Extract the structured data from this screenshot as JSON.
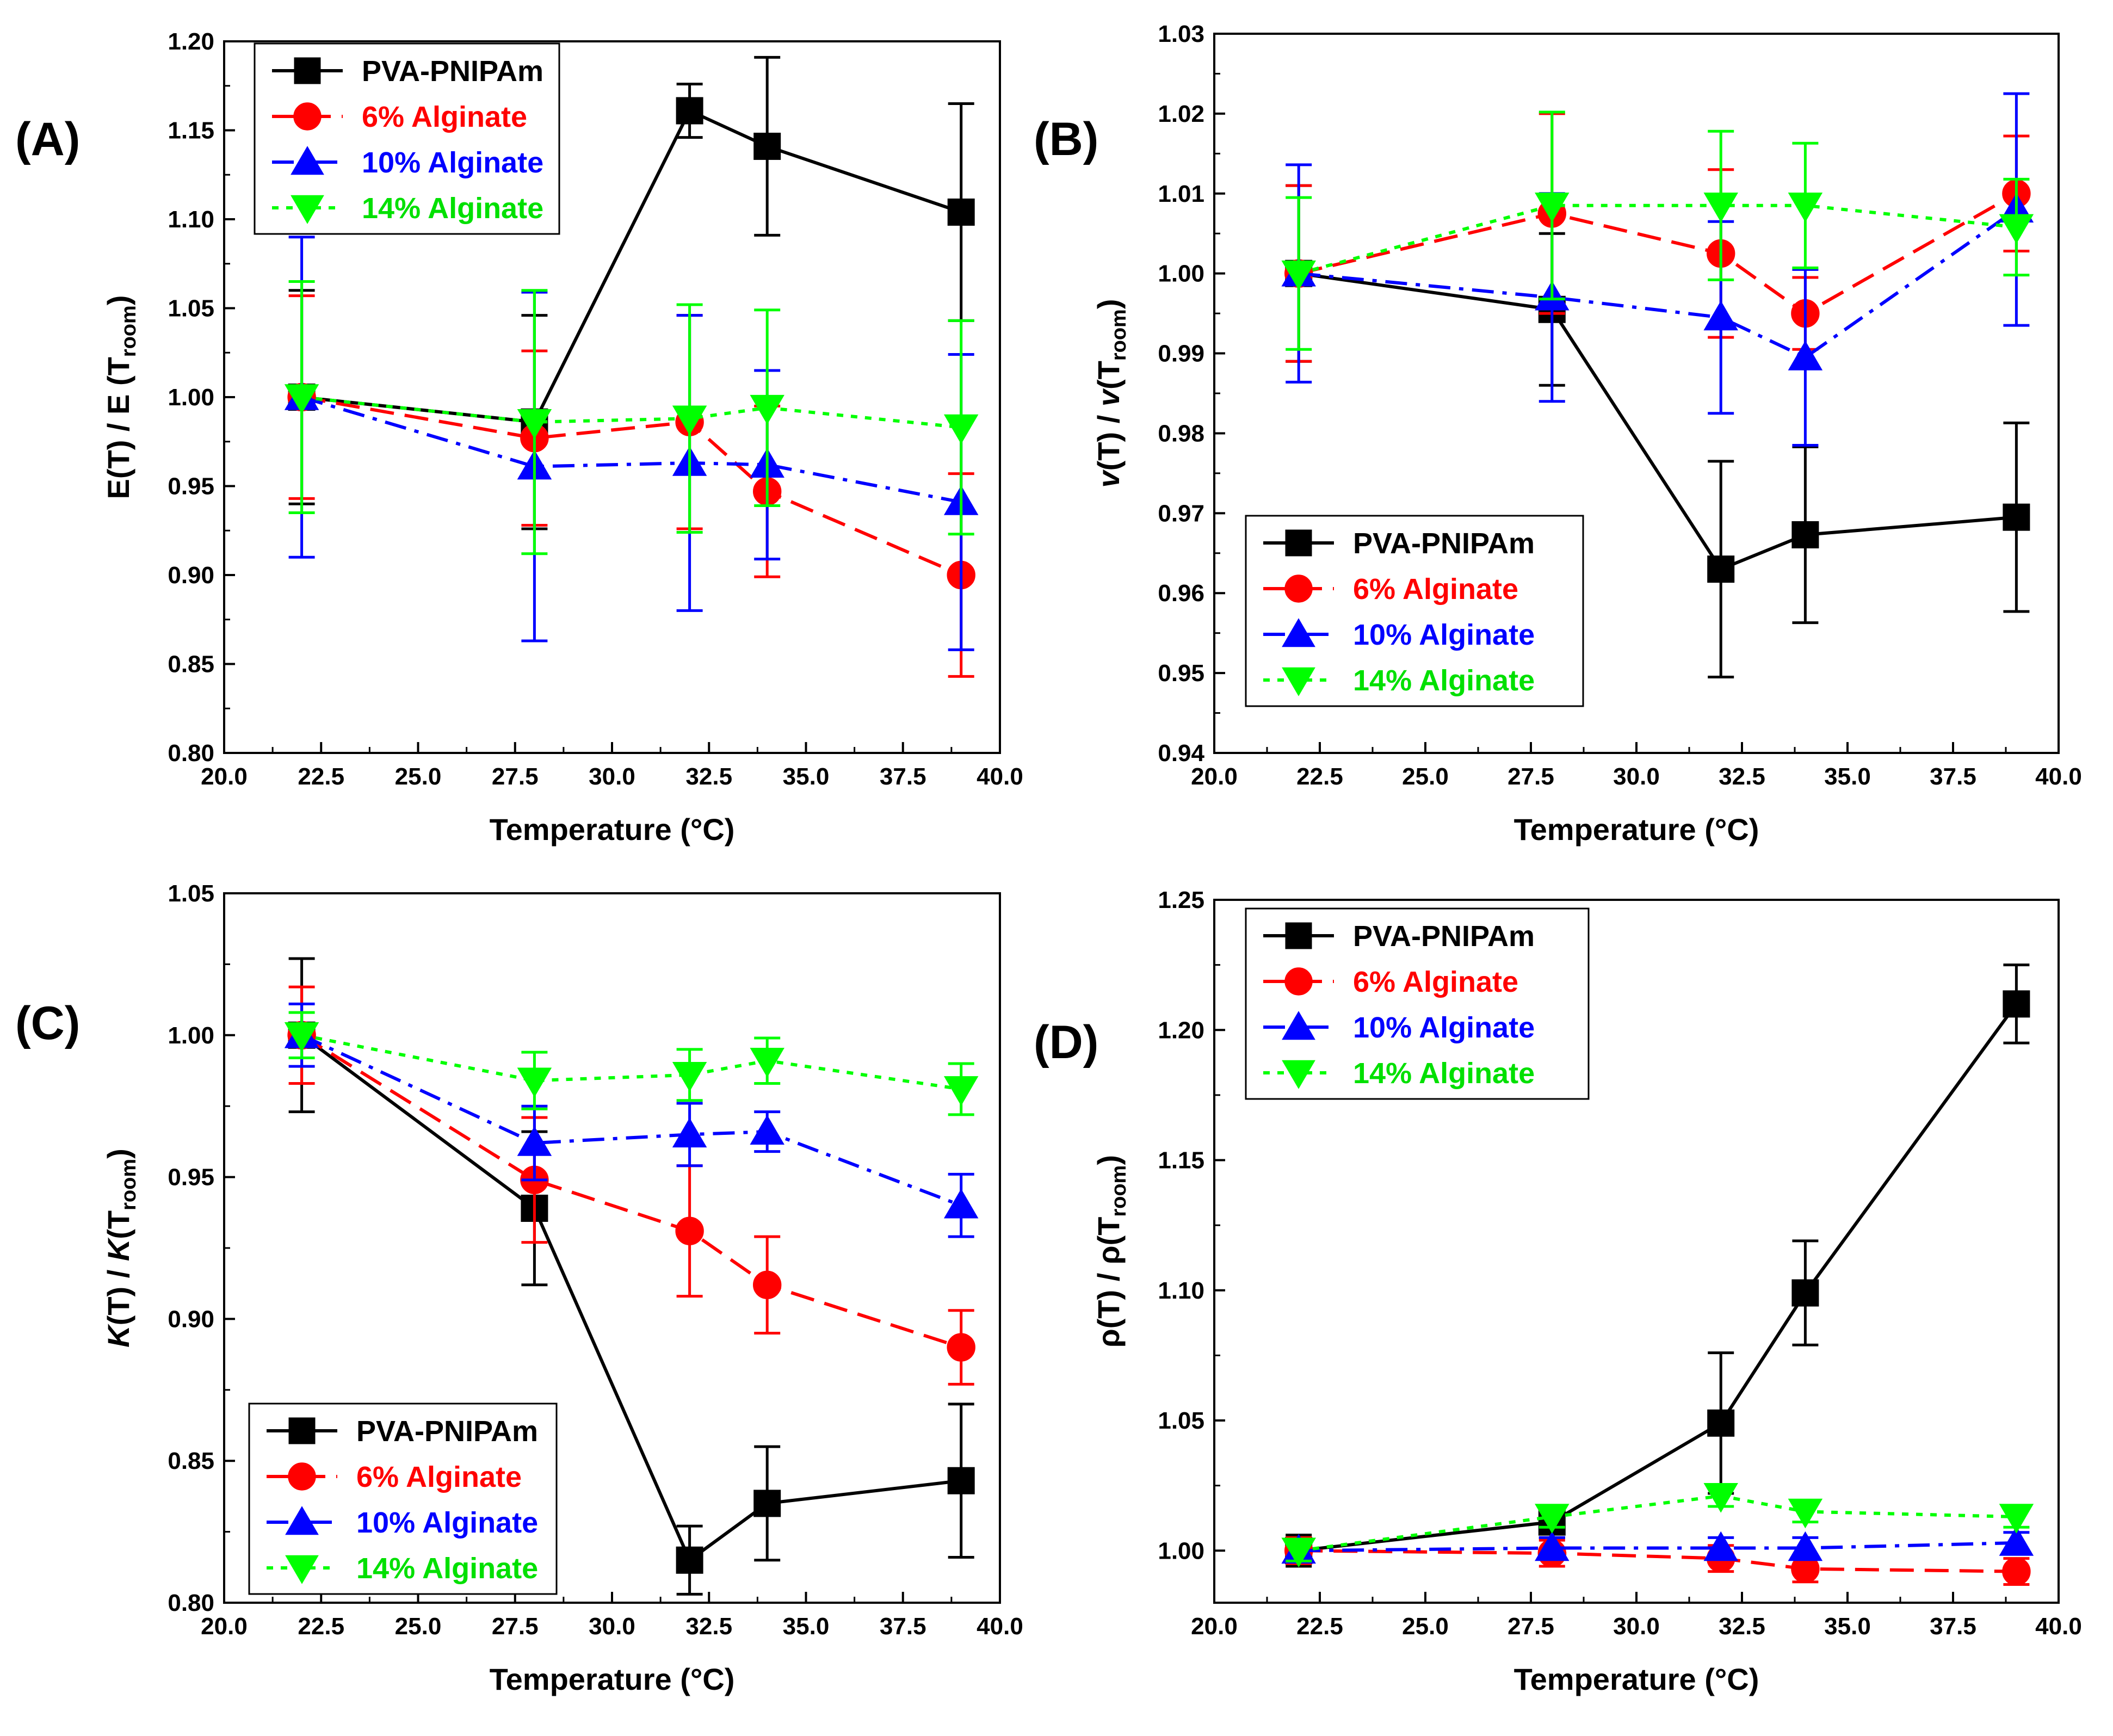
{
  "figure": {
    "xlabel": "Temperature (°C)",
    "x_ticks": [
      "20.0",
      "22.5",
      "25.0",
      "27.5",
      "30.0",
      "32.5",
      "35.0",
      "37.5",
      "40.0"
    ]
  },
  "chart_data": [
    {
      "panel": "(A)",
      "type": "line",
      "xlabel": "Temperature (°C)",
      "ylabel": "E(T) / E (Troom)",
      "ylabel_parts": {
        "main": "E(T) / E (T",
        "sub": "room",
        "tail": ")",
        "italic": false,
        "symbol": "E"
      },
      "xlim": [
        20,
        40
      ],
      "ylim": [
        0.8,
        1.2
      ],
      "y_ticks": [
        "0.80",
        "0.85",
        "0.90",
        "0.95",
        "1.00",
        "1.05",
        "1.10",
        "1.15",
        "1.20"
      ],
      "x": [
        22,
        28,
        32,
        34,
        39
      ],
      "legend": "top-left",
      "series": [
        {
          "name": "PVA-PNIPAm",
          "color": "#000000",
          "marker": "square",
          "dash": "solid",
          "values": [
            1.0,
            0.986,
            1.161,
            1.141,
            1.104
          ],
          "errors": [
            0.06,
            0.06,
            0.015,
            0.05,
            0.061
          ]
        },
        {
          "name": "6% Alginate",
          "color": "#ff0000",
          "marker": "circle",
          "dash": "dash",
          "values": [
            1.0,
            0.977,
            0.986,
            0.947,
            0.9
          ],
          "errors": [
            0.057,
            0.049,
            0.06,
            0.048,
            0.057
          ]
        },
        {
          "name": "10% Alginate",
          "color": "#0000ff",
          "marker": "triangle-up",
          "dash": "dashdot",
          "values": [
            1.0,
            0.961,
            0.963,
            0.962,
            0.941
          ],
          "errors": [
            0.09,
            0.098,
            0.083,
            0.053,
            0.083
          ]
        },
        {
          "name": "14% Alginate",
          "color": "#00ff00",
          "marker": "triangle-down",
          "dash": "dot",
          "values": [
            1.0,
            0.986,
            0.988,
            0.994,
            0.983
          ],
          "errors": [
            0.065,
            0.074,
            0.064,
            0.055,
            0.06
          ]
        }
      ]
    },
    {
      "panel": "(B)",
      "type": "line",
      "xlabel": "Temperature (°C)",
      "ylabel": "v(T) / v(Troom)",
      "ylabel_parts": {
        "main": "(T) / ",
        "sub": "room",
        "tail": ")",
        "italic": true,
        "symbol": "v"
      },
      "xlim": [
        20,
        40
      ],
      "ylim": [
        0.94,
        1.03
      ],
      "y_ticks": [
        "0.94",
        "0.95",
        "0.96",
        "0.97",
        "0.98",
        "0.99",
        "1.00",
        "1.01",
        "1.02",
        "1.03"
      ],
      "x": [
        22,
        28,
        32,
        34,
        39
      ],
      "legend": "bottom-left",
      "series": [
        {
          "name": "PVA-PNIPAm",
          "color": "#000000",
          "marker": "square",
          "dash": "solid",
          "values": [
            1.0,
            0.9955,
            0.963,
            0.9673,
            0.9695
          ],
          "errors": [
            0.011,
            0.0095,
            0.0135,
            0.011,
            0.0118
          ]
        },
        {
          "name": "6% Alginate",
          "color": "#ff0000",
          "marker": "circle",
          "dash": "dash",
          "values": [
            1.0,
            1.0075,
            1.0025,
            0.995,
            1.01
          ],
          "errors": [
            0.011,
            0.0125,
            0.0105,
            0.0045,
            0.0072
          ]
        },
        {
          "name": "10% Alginate",
          "color": "#0000ff",
          "marker": "triangle-up",
          "dash": "dashdot",
          "values": [
            1.0,
            0.997,
            0.9945,
            0.9895,
            1.008
          ],
          "errors": [
            0.0136,
            0.013,
            0.012,
            0.011,
            0.0145
          ]
        },
        {
          "name": "14% Alginate",
          "color": "#00ff00",
          "marker": "triangle-down",
          "dash": "dot",
          "values": [
            1.0,
            1.0085,
            1.0085,
            1.0085,
            1.0058
          ],
          "errors": [
            0.0095,
            0.0117,
            0.0093,
            0.0078,
            0.006
          ]
        }
      ]
    },
    {
      "panel": "(C)",
      "type": "line",
      "xlabel": "Temperature (°C)",
      "ylabel": "K(T) / K(Troom)",
      "ylabel_parts": {
        "main": "(T) / ",
        "sub": "room",
        "tail": ")",
        "italic": true,
        "symbol": "K"
      },
      "xlim": [
        20,
        40
      ],
      "ylim": [
        0.8,
        1.05
      ],
      "y_ticks": [
        "0.80",
        "0.85",
        "0.90",
        "0.95",
        "1.00",
        "1.05"
      ],
      "x": [
        22,
        28,
        32,
        34,
        39
      ],
      "legend": "bottom-left",
      "series": [
        {
          "name": "PVA-PNIPAm",
          "color": "#000000",
          "marker": "square",
          "dash": "solid",
          "values": [
            1.0,
            0.939,
            0.815,
            0.835,
            0.843
          ],
          "errors": [
            0.027,
            0.027,
            0.012,
            0.02,
            0.027
          ]
        },
        {
          "name": "6% Alginate",
          "color": "#ff0000",
          "marker": "circle",
          "dash": "dash",
          "values": [
            1.0,
            0.949,
            0.931,
            0.912,
            0.89
          ],
          "errors": [
            0.017,
            0.022,
            0.023,
            0.017,
            0.013
          ]
        },
        {
          "name": "10% Alginate",
          "color": "#0000ff",
          "marker": "triangle-up",
          "dash": "dashdot",
          "values": [
            1.0,
            0.962,
            0.965,
            0.966,
            0.94
          ],
          "errors": [
            0.011,
            0.013,
            0.011,
            0.007,
            0.011
          ]
        },
        {
          "name": "14% Alginate",
          "color": "#00ff00",
          "marker": "triangle-down",
          "dash": "dot",
          "values": [
            1.0,
            0.984,
            0.986,
            0.991,
            0.981
          ],
          "errors": [
            0.008,
            0.01,
            0.009,
            0.008,
            0.009
          ]
        }
      ]
    },
    {
      "panel": "(D)",
      "type": "line",
      "xlabel": "Temperature (°C)",
      "ylabel": "ρ(T) / ρ(Troom)",
      "ylabel_parts": {
        "main": "(T) / ",
        "sub": "room",
        "tail": ")",
        "italic": false,
        "symbol": "ρ"
      },
      "xlim": [
        20,
        40
      ],
      "ylim": [
        0.98,
        1.25
      ],
      "y_ticks": [
        "1.00",
        "1.05",
        "1.10",
        "1.15",
        "1.20",
        "1.25"
      ],
      "x": [
        22,
        28,
        32,
        34,
        39
      ],
      "legend": "top-left",
      "series": [
        {
          "name": "PVA-PNIPAm",
          "color": "#000000",
          "marker": "square",
          "dash": "solid",
          "values": [
            1.0,
            1.011,
            1.049,
            1.099,
            1.21
          ],
          "errors": [
            0.006,
            0.006,
            0.027,
            0.02,
            0.015
          ]
        },
        {
          "name": "6% Alginate",
          "color": "#ff0000",
          "marker": "circle",
          "dash": "dash",
          "values": [
            1.0,
            0.999,
            0.997,
            0.993,
            0.992
          ],
          "errors": [
            0.005,
            0.005,
            0.005,
            0.005,
            0.005
          ]
        },
        {
          "name": "10% Alginate",
          "color": "#0000ff",
          "marker": "triangle-up",
          "dash": "dashdot",
          "values": [
            1.0,
            1.001,
            1.001,
            1.001,
            1.003
          ],
          "errors": [
            0.004,
            0.004,
            0.004,
            0.004,
            0.004
          ]
        },
        {
          "name": "14% Alginate",
          "color": "#00ff00",
          "marker": "triangle-down",
          "dash": "dot",
          "values": [
            1.0,
            1.013,
            1.021,
            1.015,
            1.013
          ],
          "errors": [
            0.004,
            0.004,
            0.004,
            0.004,
            0.004
          ]
        }
      ]
    }
  ]
}
